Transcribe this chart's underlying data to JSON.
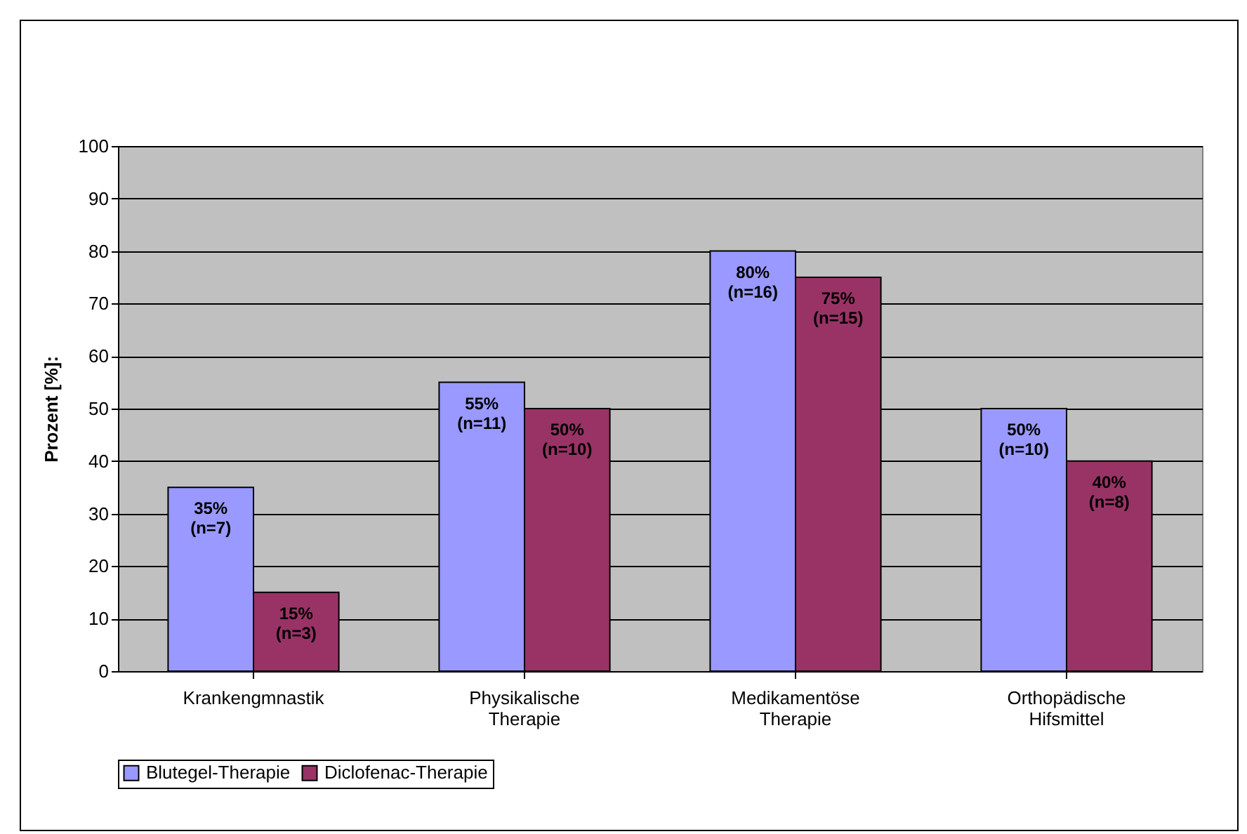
{
  "chart_data": {
    "type": "bar",
    "ylabel": "Prozent [%]:",
    "categories": [
      "Krankengmnastik",
      "Physikalische Therapie",
      "Medikamentöse Therapie",
      "Orthopädische Hifsmittel"
    ],
    "series": [
      {
        "name": "Blutegel-Therapie",
        "color": "#9999ff",
        "values": [
          35,
          55,
          80,
          50
        ],
        "value_labels": [
          "35%\n(n=7)",
          "55%\n(n=11)",
          "80%\n(n=16)",
          "50%\n(n=10)"
        ]
      },
      {
        "name": "Diclofenac-Therapie",
        "color": "#993366",
        "values": [
          15,
          50,
          75,
          40
        ],
        "value_labels": [
          "15%\n(n=3)",
          "50%\n(n=10)",
          "75%\n(n=15)",
          "40%\n(n=8)"
        ]
      }
    ],
    "ylim": [
      0,
      100
    ],
    "yticks": [
      0,
      10,
      20,
      30,
      40,
      50,
      60,
      70,
      80,
      90,
      100
    ],
    "grid": "y",
    "legend": "bottom"
  }
}
